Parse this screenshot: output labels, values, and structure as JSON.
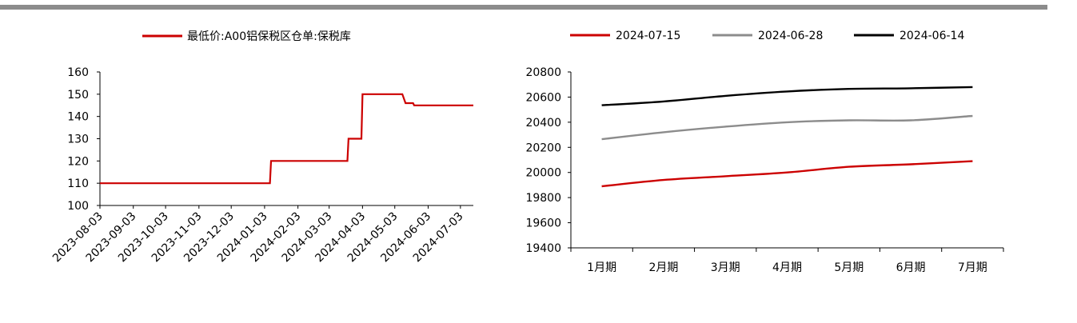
{
  "chart_data": [
    {
      "type": "line",
      "title": "",
      "xlabel": "",
      "ylabel": "",
      "ylim": [
        100,
        160
      ],
      "yticks": [
        100,
        110,
        120,
        130,
        140,
        150,
        160
      ],
      "x_tick_labels": [
        "2023-08-03",
        "2023-09-03",
        "2023-10-03",
        "2023-11-03",
        "2023-12-03",
        "2024-01-03",
        "2024-02-03",
        "2024-03-03",
        "2024-04-03",
        "2024-05-03",
        "2024-06-03",
        "2024-07-03"
      ],
      "xlim": [
        "2023-08-03",
        "2024-07-15"
      ],
      "grid": false,
      "legend_position": "top",
      "series": [
        {
          "name": "最低价:A00铝保税区仓单:保税库",
          "color": "#cc0000",
          "points": [
            [
              "2023-08-03",
              110
            ],
            [
              "2024-01-08",
              110
            ],
            [
              "2024-01-09",
              120
            ],
            [
              "2024-03-20",
              120
            ],
            [
              "2024-03-21",
              130
            ],
            [
              "2024-04-02",
              130
            ],
            [
              "2024-04-03",
              150
            ],
            [
              "2024-05-10",
              150
            ],
            [
              "2024-05-13",
              146
            ],
            [
              "2024-05-20",
              146
            ],
            [
              "2024-05-21",
              145
            ],
            [
              "2024-07-15",
              145
            ]
          ]
        }
      ]
    },
    {
      "type": "line",
      "title": "",
      "xlabel": "",
      "ylabel": "",
      "categories": [
        "1月期",
        "2月期",
        "3月期",
        "4月期",
        "5月期",
        "6月期",
        "7月期"
      ],
      "ylim": [
        19400,
        20800
      ],
      "yticks": [
        19400,
        19600,
        19800,
        20000,
        20200,
        20400,
        20600,
        20800
      ],
      "grid": false,
      "legend_position": "top",
      "series": [
        {
          "name": "2024-07-15",
          "color": "#cc0000",
          "values": [
            19890,
            19940,
            19970,
            20000,
            20045,
            20065,
            20090
          ]
        },
        {
          "name": "2024-06-28",
          "color": "#8c8c8c",
          "values": [
            20265,
            20320,
            20365,
            20400,
            20415,
            20415,
            20450
          ]
        },
        {
          "name": "2024-06-14",
          "color": "#000000",
          "values": [
            20535,
            20565,
            20610,
            20645,
            20665,
            20670,
            20680
          ]
        }
      ]
    }
  ]
}
